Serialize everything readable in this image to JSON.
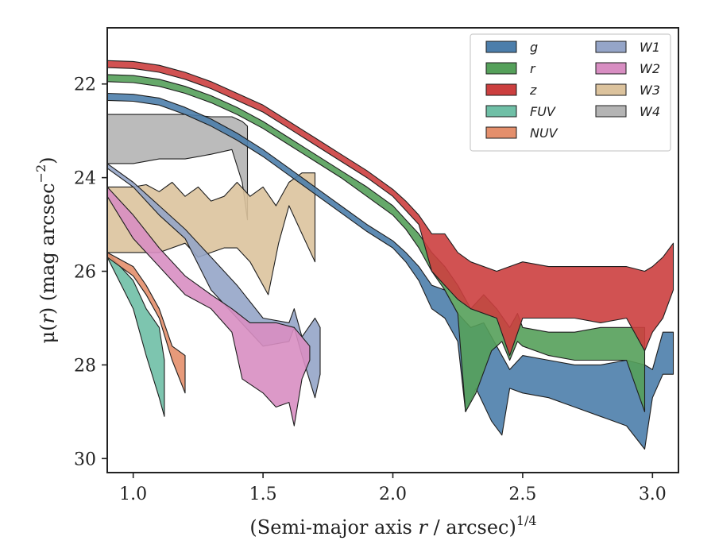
{
  "chart_data": {
    "type": "area",
    "xlabel": "(Semi-major axis r / arcsec)^{1/4}",
    "xlabel_parts": {
      "main": "(Semi-major axis ",
      "var": "r",
      "tail": " / arcsec)",
      "sup": "1/4"
    },
    "ylabel": "μ(r) (mag arcsec^{-2})",
    "ylabel_parts": {
      "mu": "μ(",
      "var": "r",
      "mid": ") (mag arcsec",
      "sup": "−2",
      "close": ")"
    },
    "xlim": [
      0.9,
      3.1
    ],
    "ylim": [
      30.3,
      20.8
    ],
    "y_inverted": true,
    "xticks": [
      1.0,
      1.5,
      2.0,
      2.5,
      3.0
    ],
    "xtick_labels": [
      "1.0",
      "1.5",
      "2.0",
      "2.5",
      "3.0"
    ],
    "yticks": [
      22,
      24,
      26,
      28,
      30
    ],
    "ytick_labels": [
      "22",
      "24",
      "26",
      "28",
      "30"
    ],
    "legend_position": "top-right",
    "legend_columns": 2,
    "series": [
      {
        "name": "g",
        "color": "#4c7eab",
        "upper": [
          [
            0.9,
            22.2
          ],
          [
            1.0,
            22.22
          ],
          [
            1.1,
            22.3
          ],
          [
            1.2,
            22.5
          ],
          [
            1.3,
            22.75
          ],
          [
            1.4,
            23.05
          ],
          [
            1.5,
            23.4
          ],
          [
            1.6,
            23.8
          ],
          [
            1.7,
            24.2
          ],
          [
            1.8,
            24.6
          ],
          [
            1.9,
            25.0
          ],
          [
            2.0,
            25.35
          ],
          [
            2.05,
            25.6
          ],
          [
            2.1,
            25.9
          ],
          [
            2.15,
            26.3
          ],
          [
            2.2,
            26.4
          ],
          [
            2.25,
            26.9
          ],
          [
            2.3,
            27.2
          ],
          [
            2.35,
            27.1
          ],
          [
            2.4,
            27.6
          ],
          [
            2.45,
            28.1
          ],
          [
            2.5,
            27.8
          ],
          [
            2.6,
            27.9
          ],
          [
            2.7,
            28.0
          ],
          [
            2.8,
            28.0
          ],
          [
            2.9,
            27.9
          ],
          [
            2.97,
            28.0
          ],
          [
            3.0,
            28.1
          ],
          [
            3.04,
            27.3
          ],
          [
            3.08,
            27.3
          ]
        ],
        "lower": [
          [
            0.9,
            22.35
          ],
          [
            1.0,
            22.37
          ],
          [
            1.1,
            22.45
          ],
          [
            1.2,
            22.65
          ],
          [
            1.3,
            22.9
          ],
          [
            1.4,
            23.2
          ],
          [
            1.5,
            23.55
          ],
          [
            1.6,
            23.95
          ],
          [
            1.7,
            24.35
          ],
          [
            1.8,
            24.75
          ],
          [
            1.9,
            25.15
          ],
          [
            2.0,
            25.5
          ],
          [
            2.05,
            25.8
          ],
          [
            2.1,
            26.2
          ],
          [
            2.15,
            26.8
          ],
          [
            2.2,
            27.0
          ],
          [
            2.25,
            27.5
          ],
          [
            2.28,
            29.0
          ],
          [
            2.32,
            28.5
          ],
          [
            2.38,
            29.2
          ],
          [
            2.42,
            29.5
          ],
          [
            2.45,
            28.5
          ],
          [
            2.5,
            28.6
          ],
          [
            2.6,
            28.7
          ],
          [
            2.7,
            28.9
          ],
          [
            2.8,
            29.1
          ],
          [
            2.9,
            29.3
          ],
          [
            2.97,
            29.8
          ],
          [
            3.0,
            28.7
          ],
          [
            3.04,
            28.2
          ],
          [
            3.08,
            28.2
          ]
        ]
      },
      {
        "name": "r",
        "color": "#55a05a",
        "upper": [
          [
            0.9,
            21.8
          ],
          [
            1.0,
            21.82
          ],
          [
            1.1,
            21.9
          ],
          [
            1.2,
            22.05
          ],
          [
            1.3,
            22.25
          ],
          [
            1.4,
            22.5
          ],
          [
            1.5,
            22.8
          ],
          [
            1.6,
            23.15
          ],
          [
            1.7,
            23.5
          ],
          [
            1.8,
            23.85
          ],
          [
            1.9,
            24.2
          ],
          [
            2.0,
            24.6
          ],
          [
            2.05,
            24.9
          ],
          [
            2.1,
            25.2
          ],
          [
            2.15,
            25.6
          ],
          [
            2.2,
            25.9
          ],
          [
            2.25,
            26.3
          ],
          [
            2.3,
            26.8
          ],
          [
            2.35,
            26.5
          ],
          [
            2.4,
            26.8
          ],
          [
            2.45,
            27.2
          ],
          [
            2.48,
            26.9
          ],
          [
            2.5,
            27.2
          ],
          [
            2.6,
            27.3
          ],
          [
            2.7,
            27.3
          ],
          [
            2.8,
            27.2
          ],
          [
            2.9,
            27.2
          ],
          [
            2.97,
            27.2
          ]
        ],
        "lower": [
          [
            0.9,
            21.95
          ],
          [
            1.0,
            21.97
          ],
          [
            1.1,
            22.05
          ],
          [
            1.2,
            22.2
          ],
          [
            1.3,
            22.4
          ],
          [
            1.4,
            22.65
          ],
          [
            1.5,
            22.95
          ],
          [
            1.6,
            23.3
          ],
          [
            1.7,
            23.65
          ],
          [
            1.8,
            24.0
          ],
          [
            1.9,
            24.4
          ],
          [
            2.0,
            24.8
          ],
          [
            2.05,
            25.1
          ],
          [
            2.1,
            25.5
          ],
          [
            2.15,
            26.0
          ],
          [
            2.2,
            26.4
          ],
          [
            2.25,
            26.9
          ],
          [
            2.28,
            29.0
          ],
          [
            2.32,
            28.6
          ],
          [
            2.38,
            27.7
          ],
          [
            2.42,
            27.5
          ],
          [
            2.45,
            27.9
          ],
          [
            2.48,
            27.5
          ],
          [
            2.5,
            27.6
          ],
          [
            2.6,
            27.8
          ],
          [
            2.7,
            27.9
          ],
          [
            2.8,
            27.9
          ],
          [
            2.9,
            27.9
          ],
          [
            2.97,
            29.0
          ]
        ]
      },
      {
        "name": "z",
        "color": "#cc3f3f",
        "upper": [
          [
            0.9,
            21.5
          ],
          [
            1.0,
            21.52
          ],
          [
            1.1,
            21.6
          ],
          [
            1.2,
            21.75
          ],
          [
            1.3,
            21.95
          ],
          [
            1.4,
            22.2
          ],
          [
            1.5,
            22.45
          ],
          [
            1.6,
            22.8
          ],
          [
            1.7,
            23.15
          ],
          [
            1.8,
            23.5
          ],
          [
            1.9,
            23.85
          ],
          [
            2.0,
            24.25
          ],
          [
            2.05,
            24.5
          ],
          [
            2.1,
            24.8
          ],
          [
            2.15,
            25.2
          ],
          [
            2.2,
            25.2
          ],
          [
            2.25,
            25.6
          ],
          [
            2.3,
            25.8
          ],
          [
            2.4,
            26.0
          ],
          [
            2.5,
            25.8
          ],
          [
            2.6,
            25.9
          ],
          [
            2.7,
            25.9
          ],
          [
            2.8,
            25.9
          ],
          [
            2.9,
            25.9
          ],
          [
            2.97,
            26.0
          ],
          [
            3.0,
            25.9
          ],
          [
            3.04,
            25.7
          ],
          [
            3.08,
            25.4
          ]
        ],
        "lower": [
          [
            0.9,
            21.65
          ],
          [
            1.0,
            21.67
          ],
          [
            1.1,
            21.75
          ],
          [
            1.2,
            21.9
          ],
          [
            1.3,
            22.1
          ],
          [
            1.4,
            22.35
          ],
          [
            1.5,
            22.6
          ],
          [
            1.6,
            22.95
          ],
          [
            1.7,
            23.3
          ],
          [
            1.8,
            23.65
          ],
          [
            1.9,
            24.0
          ],
          [
            2.0,
            24.4
          ],
          [
            2.05,
            24.7
          ],
          [
            2.1,
            25.0
          ],
          [
            2.15,
            26.0
          ],
          [
            2.2,
            26.3
          ],
          [
            2.25,
            26.6
          ],
          [
            2.3,
            26.8
          ],
          [
            2.4,
            27.0
          ],
          [
            2.45,
            27.8
          ],
          [
            2.5,
            27.0
          ],
          [
            2.6,
            27.0
          ],
          [
            2.7,
            27.0
          ],
          [
            2.8,
            27.1
          ],
          [
            2.9,
            27.0
          ],
          [
            2.97,
            27.7
          ],
          [
            3.0,
            27.3
          ],
          [
            3.04,
            27.0
          ],
          [
            3.08,
            26.4
          ]
        ]
      },
      {
        "name": "FUV",
        "color": "#6fbfa6",
        "upper": [
          [
            0.9,
            25.6
          ],
          [
            1.0,
            26.2
          ],
          [
            1.05,
            26.8
          ],
          [
            1.1,
            27.2
          ],
          [
            1.12,
            27.9
          ]
        ],
        "lower": [
          [
            0.9,
            25.7
          ],
          [
            1.0,
            26.8
          ],
          [
            1.05,
            27.8
          ],
          [
            1.1,
            28.7
          ],
          [
            1.12,
            29.1
          ]
        ]
      },
      {
        "name": "NUV",
        "color": "#e48f6c",
        "upper": [
          [
            0.9,
            25.6
          ],
          [
            1.0,
            25.9
          ],
          [
            1.05,
            26.3
          ],
          [
            1.1,
            26.8
          ],
          [
            1.15,
            27.6
          ],
          [
            1.2,
            27.8
          ]
        ],
        "lower": [
          [
            0.9,
            25.7
          ],
          [
            1.0,
            26.1
          ],
          [
            1.05,
            26.5
          ],
          [
            1.1,
            27.0
          ],
          [
            1.15,
            27.9
          ],
          [
            1.2,
            28.6
          ]
        ]
      },
      {
        "name": "W1",
        "color": "#95a5c8",
        "upper": [
          [
            0.9,
            23.7
          ],
          [
            1.0,
            24.1
          ],
          [
            1.1,
            24.6
          ],
          [
            1.2,
            25.1
          ],
          [
            1.3,
            25.7
          ],
          [
            1.4,
            26.3
          ],
          [
            1.5,
            27.0
          ],
          [
            1.6,
            27.1
          ],
          [
            1.62,
            26.8
          ],
          [
            1.65,
            27.4
          ],
          [
            1.7,
            27.0
          ],
          [
            1.72,
            27.2
          ]
        ],
        "lower": [
          [
            0.9,
            23.8
          ],
          [
            1.0,
            24.2
          ],
          [
            1.1,
            24.8
          ],
          [
            1.2,
            25.3
          ],
          [
            1.3,
            26.4
          ],
          [
            1.4,
            27.0
          ],
          [
            1.5,
            27.6
          ],
          [
            1.6,
            27.5
          ],
          [
            1.62,
            27.2
          ],
          [
            1.65,
            27.8
          ],
          [
            1.7,
            28.7
          ],
          [
            1.72,
            28.2
          ]
        ]
      },
      {
        "name": "W2",
        "color": "#d88ec2",
        "upper": [
          [
            0.9,
            24.2
          ],
          [
            1.0,
            24.8
          ],
          [
            1.1,
            25.5
          ],
          [
            1.2,
            26.1
          ],
          [
            1.3,
            26.5
          ],
          [
            1.38,
            26.8
          ],
          [
            1.45,
            27.1
          ],
          [
            1.55,
            27.1
          ],
          [
            1.62,
            27.2
          ],
          [
            1.68,
            27.6
          ]
        ],
        "lower": [
          [
            0.9,
            24.4
          ],
          [
            1.0,
            25.3
          ],
          [
            1.1,
            25.9
          ],
          [
            1.2,
            26.5
          ],
          [
            1.3,
            26.8
          ],
          [
            1.38,
            27.3
          ],
          [
            1.42,
            28.3
          ],
          [
            1.5,
            28.6
          ],
          [
            1.55,
            28.9
          ],
          [
            1.6,
            28.8
          ],
          [
            1.62,
            29.3
          ],
          [
            1.65,
            28.3
          ],
          [
            1.68,
            27.9
          ]
        ]
      },
      {
        "name": "W3",
        "color": "#dcc39d",
        "upper": [
          [
            0.9,
            24.2
          ],
          [
            1.0,
            24.2
          ],
          [
            1.05,
            24.15
          ],
          [
            1.1,
            24.3
          ],
          [
            1.15,
            24.1
          ],
          [
            1.2,
            24.4
          ],
          [
            1.25,
            24.2
          ],
          [
            1.3,
            24.5
          ],
          [
            1.35,
            24.4
          ],
          [
            1.4,
            24.1
          ],
          [
            1.45,
            24.4
          ],
          [
            1.5,
            24.2
          ],
          [
            1.55,
            24.6
          ],
          [
            1.6,
            24.1
          ],
          [
            1.65,
            23.9
          ],
          [
            1.7,
            23.9
          ]
        ],
        "lower": [
          [
            0.9,
            25.6
          ],
          [
            1.0,
            25.6
          ],
          [
            1.1,
            25.6
          ],
          [
            1.2,
            25.4
          ],
          [
            1.25,
            25.7
          ],
          [
            1.3,
            25.6
          ],
          [
            1.35,
            25.5
          ],
          [
            1.4,
            25.5
          ],
          [
            1.45,
            25.8
          ],
          [
            1.52,
            26.5
          ],
          [
            1.56,
            25.4
          ],
          [
            1.6,
            24.6
          ],
          [
            1.65,
            25.2
          ],
          [
            1.7,
            25.8
          ]
        ]
      },
      {
        "name": "W4",
        "color": "#b4b4b4",
        "upper": [
          [
            0.9,
            22.65
          ],
          [
            1.0,
            22.65
          ],
          [
            1.1,
            22.65
          ],
          [
            1.2,
            22.65
          ],
          [
            1.3,
            22.7
          ],
          [
            1.38,
            22.7
          ],
          [
            1.42,
            22.8
          ],
          [
            1.44,
            22.9
          ]
        ],
        "lower": [
          [
            0.9,
            23.7
          ],
          [
            1.0,
            23.7
          ],
          [
            1.1,
            23.6
          ],
          [
            1.2,
            23.6
          ],
          [
            1.3,
            23.5
          ],
          [
            1.38,
            23.4
          ],
          [
            1.42,
            24.1
          ],
          [
            1.44,
            24.9
          ]
        ]
      }
    ],
    "draw_order": [
      "W4",
      "W3",
      "W1",
      "W2",
      "FUV",
      "NUV",
      "g",
      "r",
      "z"
    ],
    "legend_order": [
      [
        "g",
        "r",
        "z",
        "FUV",
        "NUV"
      ],
      [
        "W1",
        "W2",
        "W3",
        "W4"
      ]
    ]
  }
}
